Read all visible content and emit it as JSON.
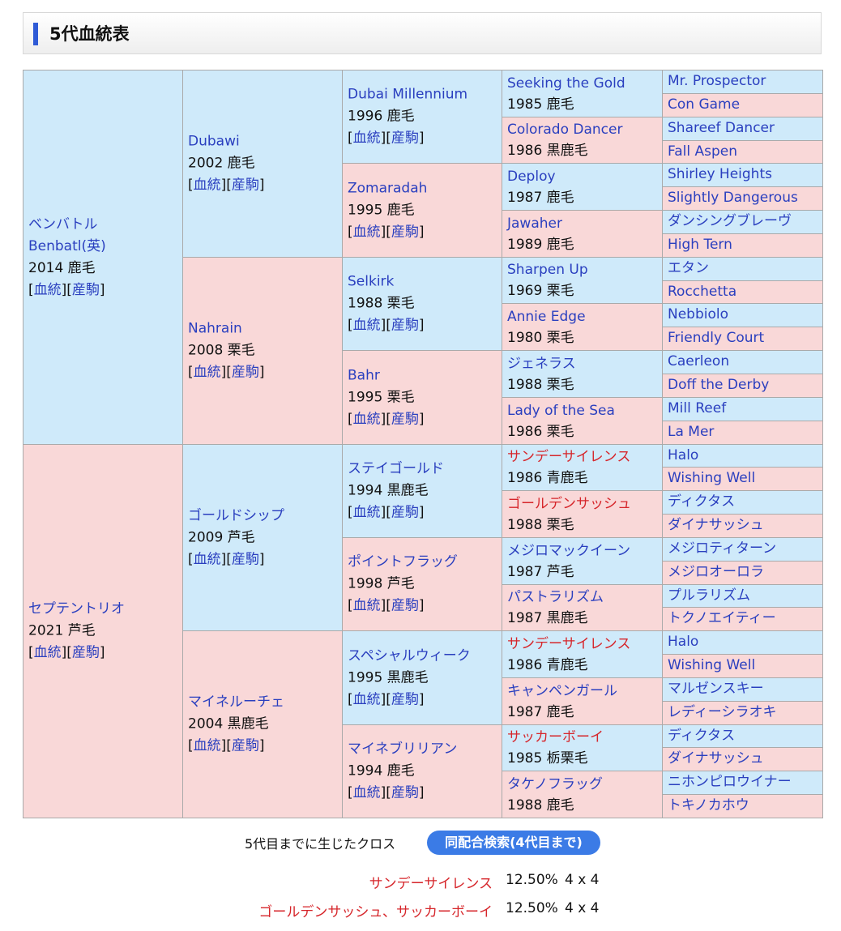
{
  "header": {
    "title": "5代血統表"
  },
  "pedigree": {
    "link_labels": {
      "blood": "血統",
      "offspring": "産駒"
    },
    "gen1": [
      {
        "sex": "m",
        "name": "ベンバトル",
        "name2": "Benbatl(英)",
        "sub": "2014 鹿毛"
      },
      {
        "sex": "f",
        "name": "セプテントリオ",
        "sub": "2021 芦毛"
      }
    ],
    "gen2": [
      {
        "sex": "m",
        "name": "Dubawi",
        "sub": "2002 鹿毛"
      },
      {
        "sex": "f",
        "name": "Nahrain",
        "sub": "2008 栗毛"
      },
      {
        "sex": "m",
        "name": "ゴールドシップ",
        "sub": "2009 芦毛"
      },
      {
        "sex": "f",
        "name": "マイネルーチェ",
        "sub": "2004 黒鹿毛"
      }
    ],
    "gen3": [
      {
        "sex": "m",
        "name": "Dubai Millennium",
        "sub": "1996 鹿毛"
      },
      {
        "sex": "f",
        "name": "Zomaradah",
        "sub": "1995 鹿毛"
      },
      {
        "sex": "m",
        "name": "Selkirk",
        "sub": "1988 栗毛"
      },
      {
        "sex": "f",
        "name": "Bahr",
        "sub": "1995 栗毛"
      },
      {
        "sex": "m",
        "name": "ステイゴールド",
        "sub": "1994 黒鹿毛"
      },
      {
        "sex": "f",
        "name": "ポイントフラッグ",
        "sub": "1998 芦毛"
      },
      {
        "sex": "m",
        "name": "スペシャルウィーク",
        "sub": "1995 黒鹿毛"
      },
      {
        "sex": "f",
        "name": "マイネブリリアン",
        "sub": "1994 鹿毛"
      }
    ],
    "gen4": [
      {
        "sex": "m",
        "name": "Seeking the Gold",
        "sub": "1985 鹿毛"
      },
      {
        "sex": "f",
        "name": "Colorado Dancer",
        "sub": "1986 黒鹿毛"
      },
      {
        "sex": "m",
        "name": "Deploy",
        "sub": "1987 鹿毛"
      },
      {
        "sex": "f",
        "name": "Jawaher",
        "sub": "1989 鹿毛"
      },
      {
        "sex": "m",
        "name": "Sharpen Up",
        "sub": "1969 栗毛"
      },
      {
        "sex": "f",
        "name": "Annie Edge",
        "sub": "1980 栗毛"
      },
      {
        "sex": "m",
        "name": "ジェネラス",
        "sub": "1988 栗毛"
      },
      {
        "sex": "f",
        "name": "Lady of the Sea",
        "sub": "1986 栗毛"
      },
      {
        "sex": "m",
        "name": "サンデーサイレンス",
        "sub": "1986 青鹿毛",
        "cross": true
      },
      {
        "sex": "f",
        "name": "ゴールデンサッシュ",
        "sub": "1988 栗毛",
        "cross": true
      },
      {
        "sex": "m",
        "name": "メジロマックイーン",
        "sub": "1987 芦毛"
      },
      {
        "sex": "f",
        "name": "パストラリズム",
        "sub": "1987 黒鹿毛"
      },
      {
        "sex": "m",
        "name": "サンデーサイレンス",
        "sub": "1986 青鹿毛",
        "cross": true
      },
      {
        "sex": "f",
        "name": "キャンペンガール",
        "sub": "1987 鹿毛"
      },
      {
        "sex": "m",
        "name": "サッカーボーイ",
        "sub": "1985 栃栗毛",
        "cross": true
      },
      {
        "sex": "f",
        "name": "タケノフラッグ",
        "sub": "1988 鹿毛"
      }
    ],
    "gen5": [
      "Mr. Prospector",
      "Con Game",
      "Shareef Dancer",
      "Fall Aspen",
      "Shirley Heights",
      "Slightly Dangerous",
      "ダンシングブレーヴ",
      "High Tern",
      "エタン",
      "Rocchetta",
      "Nebbiolo",
      "Friendly Court",
      "Caerleon",
      "Doff the Derby",
      "Mill Reef",
      "La Mer",
      "Halo",
      "Wishing Well",
      "ディクタス",
      "ダイナサッシュ",
      "メジロティターン",
      "メジロオーロラ",
      "プルラリズム",
      "トクノエイティー",
      "Halo",
      "Wishing Well",
      "マルゼンスキー",
      "レディーシラオキ",
      "ディクタス",
      "ダイナサッシュ",
      "ニホンピロウイナー",
      "トキノカホウ"
    ]
  },
  "crosses": {
    "title": "5代目までに生じたクロス",
    "search_button": "同配合検索(4代目まで)",
    "rows": [
      {
        "name": "サンデーサイレンス",
        "percent": "12.50%",
        "gens": "4 x 4"
      },
      {
        "name": "ゴールデンサッシュ、サッカーボーイ",
        "percent": "12.50%",
        "gens": "4 x 4"
      }
    ]
  }
}
